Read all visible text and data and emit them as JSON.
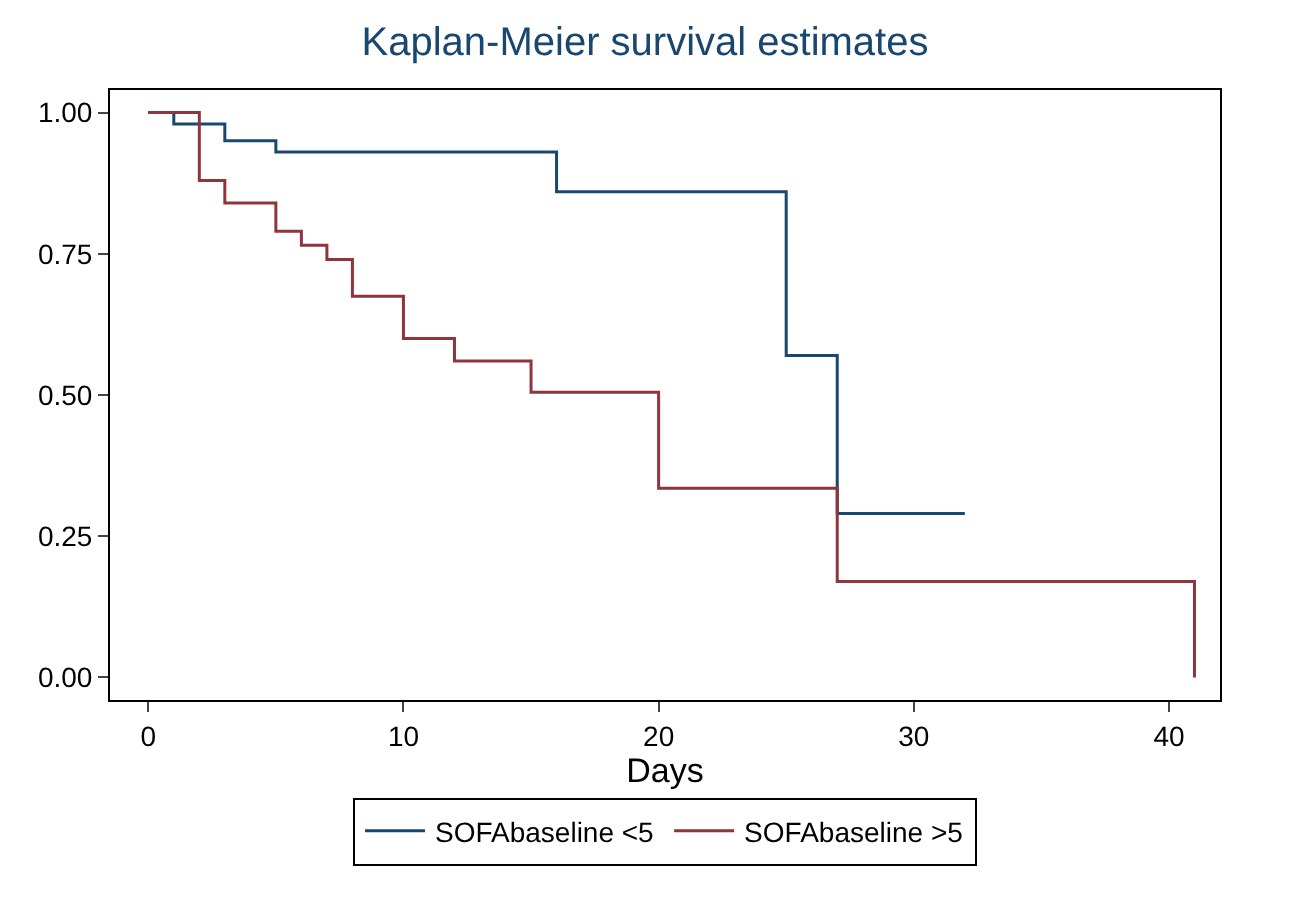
{
  "chart_data": {
    "type": "step",
    "title": "Kaplan-Meier survival estimates",
    "xlabel": "Days",
    "xlim": [
      -1.5,
      42
    ],
    "xticks": [
      0,
      10,
      20,
      30,
      40
    ],
    "ylim": [
      -0.04,
      1.04
    ],
    "yticks": [
      {
        "value": 0,
        "label": "0.00"
      },
      {
        "value": 0.25,
        "label": "0.25"
      },
      {
        "value": 0.5,
        "label": "0.50"
      },
      {
        "value": 0.75,
        "label": "0.75"
      },
      {
        "value": 1,
        "label": "1.00"
      }
    ],
    "grid": false,
    "legend": "bottom",
    "marker": "none",
    "line_style": "solid",
    "series": [
      {
        "name": "SOFAbaseline <5",
        "color": "#1a476f",
        "x": [
          0,
          1,
          3,
          5,
          16,
          25,
          27,
          32
        ],
        "values": [
          1,
          0.98,
          0.95,
          0.93,
          0.86,
          0.57,
          0.29,
          0.29
        ]
      },
      {
        "name": "SOFAbaseline >5",
        "color": "#90353b",
        "x": [
          0,
          2,
          3,
          5,
          6,
          7,
          8,
          10,
          12,
          15,
          20,
          27,
          41
        ],
        "values": [
          1,
          0.88,
          0.84,
          0.79,
          0.765,
          0.74,
          0.675,
          0.6,
          0.56,
          0.505,
          0.335,
          0.17,
          0
        ]
      }
    ]
  }
}
